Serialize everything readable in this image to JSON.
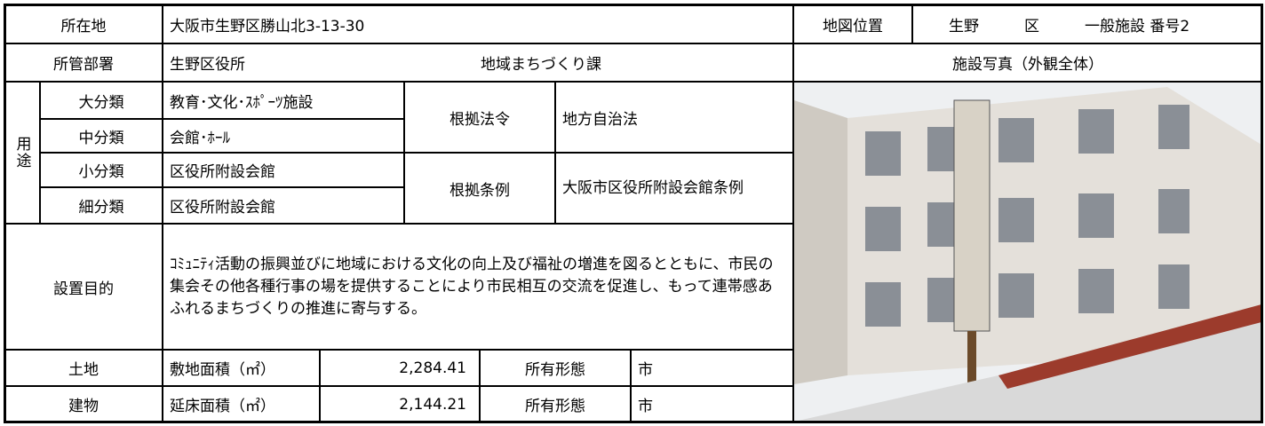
{
  "location": {
    "label": "所在地",
    "value": "大阪市生野区勝山北3-13-30"
  },
  "map_position": {
    "label": "地図位置",
    "value": "生野　　　区　　　一般施設 番号2"
  },
  "department": {
    "label": "所管部署",
    "office": "生野区役所",
    "section": "地域まちづくり課"
  },
  "photo_caption": "施設写真（外観全体）",
  "use": {
    "label": "用途",
    "rows": [
      {
        "label": "大分類",
        "value": "教育･文化･ｽﾎﾟｰﾂ施設"
      },
      {
        "label": "中分類",
        "value": "会館･ﾎｰﾙ"
      },
      {
        "label": "小分類",
        "value": "区役所附設会館"
      },
      {
        "label": "細分類",
        "value": "区役所附設会館"
      }
    ]
  },
  "legal_basis": {
    "label": "根拠法令",
    "value": "地方自治法"
  },
  "ordinance": {
    "label": "根拠条例",
    "value": "大阪市区役所附設会館条例"
  },
  "purpose": {
    "label": "設置目的",
    "text": "ｺﾐｭﾆﾃｨ活動の振興並びに地域における文化の向上及び福祉の増進を図るとともに、市民の集会その他各種行事の場を提供することにより市民相互の交流を促進し、もって連帯感あふれるまちづくりの推進に寄与する。"
  },
  "land": {
    "label": "土地",
    "area_label": "敷地面積（㎡）",
    "area": "2,284.41",
    "ownership_label": "所有形態",
    "ownership": "市"
  },
  "building": {
    "label": "建物",
    "area_label": "延床面積（㎡）",
    "area": "2,144.21",
    "ownership_label": "所有形態",
    "ownership": "市"
  }
}
